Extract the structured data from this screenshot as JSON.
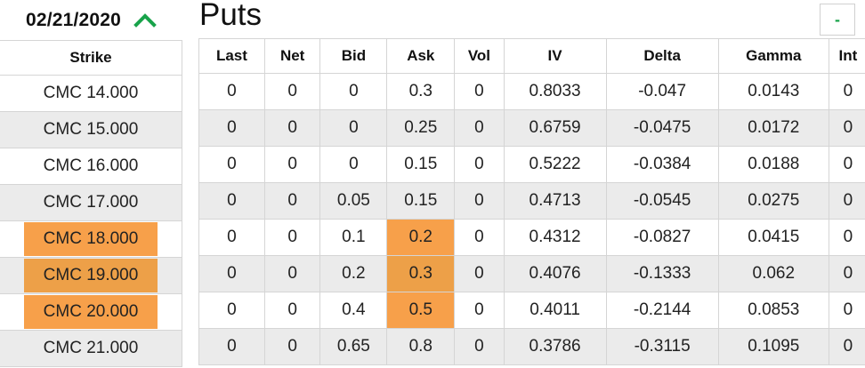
{
  "expiry": {
    "date": "02/21/2020",
    "toggle_icon": "chevron-up-icon",
    "accent": "#18a34a"
  },
  "strikes": {
    "header": "Strike",
    "rows": [
      {
        "label": "CMC 14.000",
        "highlighted": false
      },
      {
        "label": "CMC 15.000",
        "highlighted": false
      },
      {
        "label": "CMC 16.000",
        "highlighted": false
      },
      {
        "label": "CMC 17.000",
        "highlighted": false
      },
      {
        "label": "CMC 18.000",
        "highlighted": true
      },
      {
        "label": "CMC 19.000",
        "highlighted": true
      },
      {
        "label": "CMC 20.000",
        "highlighted": true
      },
      {
        "label": "CMC 21.000",
        "highlighted": false
      }
    ]
  },
  "puts": {
    "title": "Puts",
    "collapse_label": "-",
    "highlight_color": "#f7a04a",
    "columns": [
      "Last",
      "Net",
      "Bid",
      "Ask",
      "Vol",
      "IV",
      "Delta",
      "Gamma",
      "Int"
    ],
    "rows": [
      {
        "last": "0",
        "net": "0",
        "bid": "0",
        "ask": "0.3",
        "vol": "0",
        "iv": "0.8033",
        "delta": "-0.047",
        "gamma": "0.0143",
        "int": "0",
        "ask_highlighted": false
      },
      {
        "last": "0",
        "net": "0",
        "bid": "0",
        "ask": "0.25",
        "vol": "0",
        "iv": "0.6759",
        "delta": "-0.0475",
        "gamma": "0.0172",
        "int": "0",
        "ask_highlighted": false
      },
      {
        "last": "0",
        "net": "0",
        "bid": "0",
        "ask": "0.15",
        "vol": "0",
        "iv": "0.5222",
        "delta": "-0.0384",
        "gamma": "0.0188",
        "int": "0",
        "ask_highlighted": false
      },
      {
        "last": "0",
        "net": "0",
        "bid": "0.05",
        "ask": "0.15",
        "vol": "0",
        "iv": "0.4713",
        "delta": "-0.0545",
        "gamma": "0.0275",
        "int": "0",
        "ask_highlighted": false
      },
      {
        "last": "0",
        "net": "0",
        "bid": "0.1",
        "ask": "0.2",
        "vol": "0",
        "iv": "0.4312",
        "delta": "-0.0827",
        "gamma": "0.0415",
        "int": "0",
        "ask_highlighted": true
      },
      {
        "last": "0",
        "net": "0",
        "bid": "0.2",
        "ask": "0.3",
        "vol": "0",
        "iv": "0.4076",
        "delta": "-0.1333",
        "gamma": "0.062",
        "int": "0",
        "ask_highlighted": true
      },
      {
        "last": "0",
        "net": "0",
        "bid": "0.4",
        "ask": "0.5",
        "vol": "0",
        "iv": "0.4011",
        "delta": "-0.2144",
        "gamma": "0.0853",
        "int": "0",
        "ask_highlighted": true
      },
      {
        "last": "0",
        "net": "0",
        "bid": "0.65",
        "ask": "0.8",
        "vol": "0",
        "iv": "0.3786",
        "delta": "-0.3115",
        "gamma": "0.1095",
        "int": "0",
        "ask_highlighted": false
      }
    ]
  }
}
